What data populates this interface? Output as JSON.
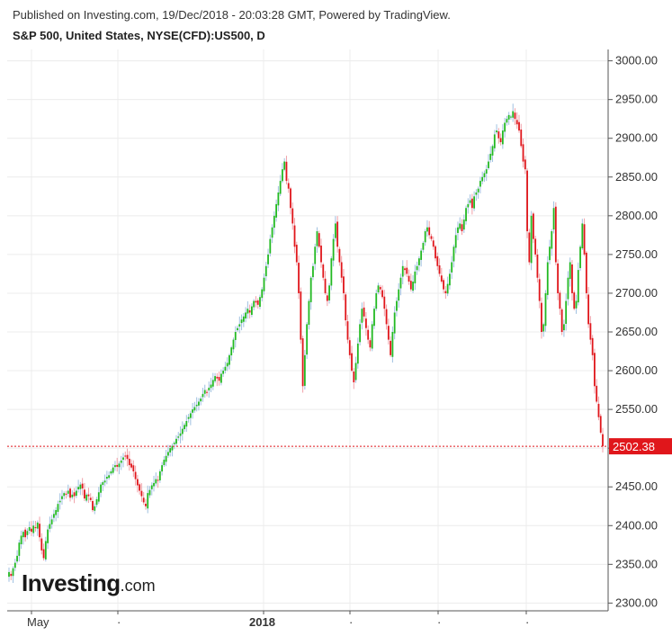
{
  "header": {
    "published": "Published on Investing.com, 19/Dec/2018 - 20:03:28 GMT, Powered by TradingView.",
    "symbol": "S&P 500, United States, NYSE(CFD):US500, D"
  },
  "logo": {
    "main": "Investing",
    "suffix": ".com"
  },
  "colors": {
    "up": "#22b922",
    "down": "#e0161b",
    "up_faded": "#9fc0e0",
    "down_faded": "#f0a0a8",
    "grid": "#ececec",
    "axis": "#555555",
    "current_line": "#e0161b"
  },
  "chart_data": {
    "type": "candlestick",
    "title": "S&P 500, United States, NYSE(CFD):US500, D",
    "ylim": [
      2290,
      3010
    ],
    "y_ticks": [
      "2300.00",
      "2350.00",
      "2400.00",
      "2450.00",
      "2500.00",
      "2550.00",
      "2600.00",
      "2650.00",
      "2700.00",
      "2750.00",
      "2800.00",
      "2850.00",
      "2900.00",
      "2950.00",
      "3000.00"
    ],
    "x_ticks": [
      {
        "label": "May",
        "bold": false
      },
      {
        "label": "",
        "bold": false
      },
      {
        "label": "2018",
        "bold": true
      },
      {
        "label": "",
        "bold": false
      },
      {
        "label": "",
        "bold": false
      },
      {
        "label": "",
        "bold": false
      }
    ],
    "current_price": 2502.38,
    "current_price_label": "2502.38",
    "close_series": [
      2340,
      2335,
      2345,
      2352,
      2361,
      2378,
      2387,
      2392,
      2385,
      2393,
      2398,
      2392,
      2400,
      2397,
      2404,
      2385,
      2368,
      2358,
      2380,
      2395,
      2402,
      2408,
      2415,
      2420,
      2428,
      2432,
      2438,
      2442,
      2440,
      2445,
      2436,
      2440,
      2438,
      2445,
      2450,
      2453,
      2448,
      2435,
      2440,
      2438,
      2433,
      2420,
      2425,
      2434,
      2443,
      2453,
      2456,
      2458,
      2463,
      2465,
      2470,
      2475,
      2478,
      2476,
      2480,
      2484,
      2488,
      2490,
      2486,
      2478,
      2475,
      2470,
      2460,
      2452,
      2445,
      2438,
      2430,
      2425,
      2442,
      2446,
      2452,
      2455,
      2460,
      2458,
      2470,
      2478,
      2485,
      2490,
      2495,
      2500,
      2503,
      2507,
      2512,
      2515,
      2519,
      2525,
      2530,
      2535,
      2540,
      2545,
      2550,
      2553,
      2556,
      2560,
      2564,
      2570,
      2575,
      2572,
      2578,
      2582,
      2588,
      2593,
      2590,
      2587,
      2596,
      2600,
      2605,
      2610,
      2620,
      2630,
      2640,
      2650,
      2655,
      2660,
      2666,
      2670,
      2675,
      2680,
      2675,
      2683,
      2690,
      2688,
      2685,
      2695,
      2705,
      2720,
      2735,
      2750,
      2770,
      2785,
      2800,
      2815,
      2830,
      2845,
      2860,
      2870,
      2845,
      2835,
      2810,
      2790,
      2760,
      2740,
      2700,
      2640,
      2580,
      2620,
      2660,
      2690,
      2720,
      2735,
      2760,
      2780,
      2760,
      2740,
      2720,
      2700,
      2690,
      2710,
      2745,
      2770,
      2790,
      2760,
      2740,
      2720,
      2700,
      2665,
      2640,
      2620,
      2600,
      2585,
      2610,
      2635,
      2660,
      2680,
      2670,
      2655,
      2640,
      2630,
      2660,
      2680,
      2700,
      2710,
      2705,
      2695,
      2680,
      2660,
      2640,
      2620,
      2650,
      2675,
      2690,
      2705,
      2720,
      2735,
      2730,
      2725,
      2715,
      2705,
      2715,
      2728,
      2735,
      2745,
      2755,
      2765,
      2780,
      2785,
      2775,
      2770,
      2760,
      2745,
      2735,
      2725,
      2715,
      2705,
      2700,
      2712,
      2725,
      2740,
      2760,
      2775,
      2785,
      2790,
      2780,
      2795,
      2810,
      2815,
      2820,
      2810,
      2825,
      2830,
      2835,
      2845,
      2850,
      2855,
      2860,
      2870,
      2880,
      2890,
      2905,
      2910,
      2900,
      2895,
      2910,
      2920,
      2925,
      2930,
      2928,
      2935,
      2925,
      2918,
      2910,
      2890,
      2870,
      2860,
      2780,
      2740,
      2800,
      2770,
      2750,
      2720,
      2690,
      2650,
      2660,
      2700,
      2740,
      2760,
      2780,
      2810,
      2740,
      2700,
      2680,
      2650,
      2660,
      2690,
      2720,
      2740,
      2700,
      2680,
      2690,
      2730,
      2760,
      2790,
      2750,
      2700,
      2660,
      2640,
      2620,
      2580,
      2560,
      2540,
      2520,
      2502.38
    ]
  }
}
